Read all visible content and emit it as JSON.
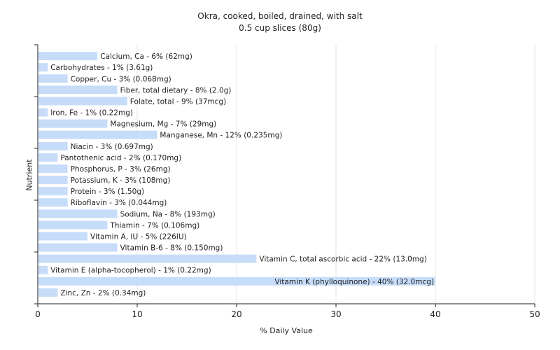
{
  "chart_data": {
    "type": "bar",
    "orientation": "horizontal",
    "title": "Okra, cooked, boiled, drained, with salt",
    "subtitle": "0.5 cup slices (80g)",
    "xlabel": "% Daily Value",
    "ylabel": "Nutrient",
    "xlim": [
      0,
      50
    ],
    "xticks": [
      0,
      10,
      20,
      30,
      40,
      50
    ],
    "grid": true,
    "colors": {
      "bar": "#c6dcf9",
      "grid": "#e4e4e4",
      "axis": "#222222",
      "background": "#ffffff"
    },
    "categories": [
      "Calcium, Ca - 6% (62mg)",
      "Carbohydrates - 1% (3.61g)",
      "Copper, Cu - 3% (0.068mg)",
      "Fiber, total dietary - 8% (2.0g)",
      "Folate, total - 9% (37mcg)",
      "Iron, Fe - 1% (0.22mg)",
      "Magnesium, Mg - 7% (29mg)",
      "Manganese, Mn - 12% (0.235mg)",
      "Niacin - 3% (0.697mg)",
      "Pantothenic acid - 2% (0.170mg)",
      "Phosphorus, P - 3% (26mg)",
      "Potassium, K - 3% (108mg)",
      "Protein - 3% (1.50g)",
      "Riboflavin - 3% (0.044mg)",
      "Sodium, Na - 8% (193mg)",
      "Thiamin - 7% (0.106mg)",
      "Vitamin A, IU - 5% (226IU)",
      "Vitamin B-6 - 8% (0.150mg)",
      "Vitamin C, total ascorbic acid - 22% (13.0mg)",
      "Vitamin E (alpha-tocopherol) - 1% (0.22mg)",
      "Vitamin K (phylloquinone) - 40% (32.0mcg)",
      "Zinc, Zn - 2% (0.34mg)"
    ],
    "values": [
      6,
      1,
      3,
      8,
      9,
      1,
      7,
      12,
      3,
      2,
      3,
      3,
      3,
      3,
      8,
      7,
      5,
      8,
      22,
      1,
      40,
      2
    ]
  }
}
